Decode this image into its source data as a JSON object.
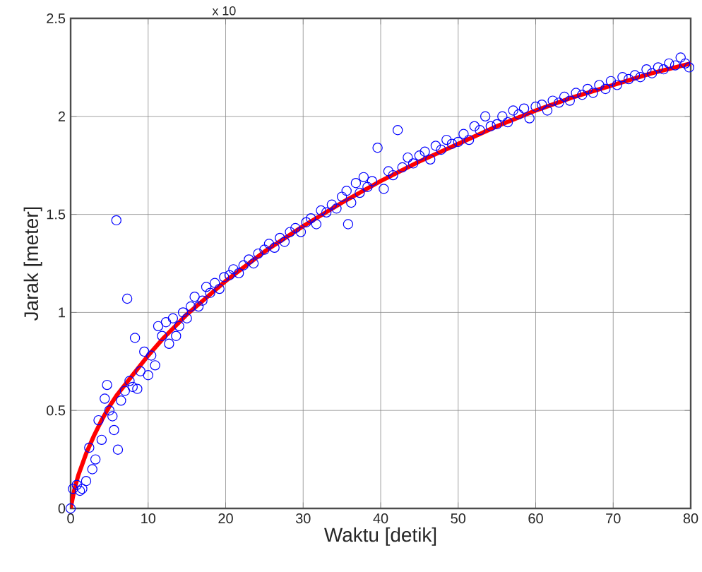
{
  "chart_data": {
    "type": "scatter",
    "xlabel": "Waktu [detik]",
    "ylabel": "Jarak [meter]",
    "annotations": [
      "x 10"
    ],
    "xlim": [
      0,
      80
    ],
    "ylim": [
      0,
      2.5
    ],
    "xticks": [
      0,
      10,
      20,
      30,
      40,
      50,
      60,
      70,
      80
    ],
    "yticks": [
      0,
      0.5,
      1,
      1.5,
      2,
      2.5
    ],
    "grid": true,
    "series": [
      {
        "marker": "circle",
        "color": "#0000ff",
        "x": [
          0,
          0.3,
          0.8,
          1.2,
          1.5,
          2,
          2.4,
          2.8,
          3.2,
          3.6,
          4,
          4.4,
          4.7,
          5,
          5.4,
          5.6,
          5.9,
          6.1,
          6.5,
          7,
          7.3,
          7.6,
          8,
          8.3,
          8.6,
          9,
          9.5,
          10,
          10.4,
          10.9,
          11.3,
          11.8,
          12.3,
          12.7,
          13.2,
          13.6,
          14,
          14.5,
          15,
          15.5,
          16,
          16.5,
          17,
          17.5,
          18,
          18.6,
          19.2,
          19.8,
          20.5,
          21,
          21.7,
          22.3,
          23,
          23.6,
          24.2,
          25,
          25.6,
          26.3,
          27,
          27.6,
          28.3,
          29,
          29.7,
          30.4,
          31,
          31.7,
          32.3,
          33,
          33.7,
          34.3,
          35,
          35.6,
          35.8,
          36.2,
          36.8,
          37.3,
          37.8,
          38.3,
          38.9,
          39.6,
          40.4,
          41,
          41.6,
          42.2,
          42.8,
          43.5,
          44.2,
          45,
          45.7,
          46.4,
          47.1,
          47.8,
          48.5,
          49.2,
          50,
          50.7,
          51.4,
          52.1,
          52.8,
          53.5,
          54.2,
          55,
          55.7,
          56.4,
          57.1,
          57.8,
          58.5,
          59.2,
          60,
          60.8,
          61.5,
          62.2,
          63,
          63.7,
          64.4,
          65.2,
          66,
          66.7,
          67.4,
          68.2,
          69,
          69.7,
          70.5,
          71.2,
          72,
          72.8,
          73.5,
          74.3,
          75,
          75.8,
          76.5,
          77.2,
          78,
          78.7,
          79.3,
          79.8
        ],
        "values": [
          0,
          0.1,
          0.12,
          0.09,
          0.1,
          0.14,
          0.31,
          0.2,
          0.25,
          0.45,
          0.35,
          0.56,
          0.63,
          0.5,
          0.47,
          0.4,
          1.47,
          0.3,
          0.55,
          0.6,
          1.07,
          0.65,
          0.62,
          0.87,
          0.61,
          0.7,
          0.8,
          0.68,
          0.78,
          0.73,
          0.93,
          0.88,
          0.95,
          0.84,
          0.97,
          0.88,
          0.93,
          1.0,
          0.97,
          1.03,
          1.08,
          1.03,
          1.06,
          1.13,
          1.1,
          1.15,
          1.12,
          1.18,
          1.19,
          1.22,
          1.2,
          1.24,
          1.27,
          1.25,
          1.3,
          1.32,
          1.35,
          1.33,
          1.38,
          1.36,
          1.41,
          1.43,
          1.41,
          1.46,
          1.48,
          1.45,
          1.52,
          1.51,
          1.55,
          1.53,
          1.59,
          1.62,
          1.45,
          1.56,
          1.66,
          1.61,
          1.69,
          1.64,
          1.67,
          1.84,
          1.63,
          1.72,
          1.7,
          1.93,
          1.74,
          1.79,
          1.76,
          1.8,
          1.82,
          1.78,
          1.85,
          1.83,
          1.88,
          1.86,
          1.87,
          1.91,
          1.88,
          1.95,
          1.93,
          2.0,
          1.95,
          1.96,
          2.0,
          1.97,
          2.03,
          2.01,
          2.04,
          1.99,
          2.05,
          2.06,
          2.03,
          2.08,
          2.07,
          2.1,
          2.08,
          2.12,
          2.11,
          2.14,
          2.12,
          2.16,
          2.14,
          2.18,
          2.16,
          2.2,
          2.19,
          2.21,
          2.2,
          2.24,
          2.22,
          2.25,
          2.24,
          2.27,
          2.26,
          2.3,
          2.27,
          2.25
        ]
      },
      {
        "type": "line",
        "marker": "none",
        "color": "#ff0000",
        "x": [
          0,
          0.5,
          1,
          2,
          3,
          4,
          5,
          6,
          8,
          10,
          12,
          15,
          20,
          25,
          30,
          35,
          40,
          45,
          50,
          55,
          60,
          65,
          70,
          75,
          80
        ],
        "values": [
          0,
          0.1,
          0.17,
          0.28,
          0.37,
          0.45,
          0.52,
          0.58,
          0.68,
          0.78,
          0.87,
          0.99,
          1.16,
          1.31,
          1.44,
          1.56,
          1.67,
          1.77,
          1.86,
          1.95,
          2.03,
          2.1,
          2.16,
          2.22,
          2.27
        ]
      }
    ]
  }
}
